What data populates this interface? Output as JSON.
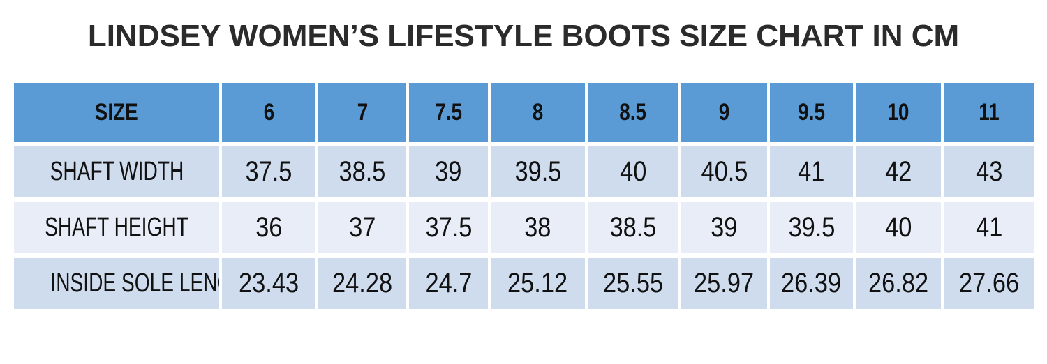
{
  "chart_data": {
    "type": "table",
    "title": "LINDSEY WOMEN’S LIFESTYLE BOOTS SIZE CHART IN CM",
    "columns": [
      "SIZE",
      "6",
      "7",
      "7.5",
      "8",
      "8.5",
      "9",
      "9.5",
      "10",
      "11"
    ],
    "rows": [
      {
        "label": "SHAFT WIDTH",
        "values": [
          "37.5",
          "38.5",
          "39",
          "39.5",
          "40",
          "40.5",
          "41",
          "42",
          "43"
        ]
      },
      {
        "label": "SHAFT HEIGHT",
        "values": [
          "36",
          "37",
          "37.5",
          "38",
          "38.5",
          "39",
          "39.5",
          "40",
          "41"
        ]
      },
      {
        "label": "INSIDE SOLE LENGTH",
        "values": [
          "23.43",
          "24.28",
          "24.7",
          "25.12",
          "25.55",
          "25.97",
          "26.39",
          "26.82",
          "27.66"
        ]
      }
    ],
    "colors": {
      "header_background": "#5b9bd5",
      "row_dark": "#cfdcee",
      "row_light": "#e8edf7",
      "title_text": "#2b2b2b"
    }
  }
}
